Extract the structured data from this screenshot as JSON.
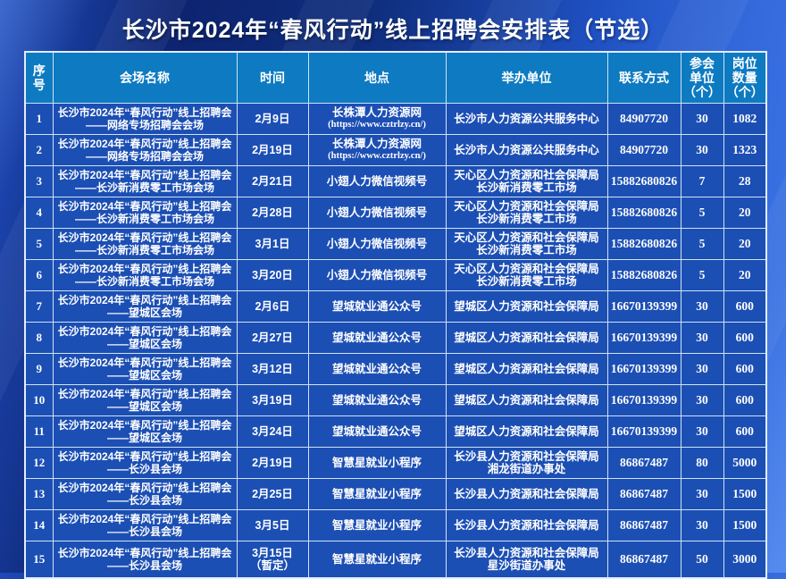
{
  "page": {
    "title": "长沙市2024年“春风行动”线上招聘会安排表（节选）"
  },
  "colors": {
    "background_top": "#0d2470",
    "background_bottom_right": "#3f78e8",
    "header_cell": "#0d7ac1",
    "body_cell": "#1c4fb4",
    "grid_line": "#cfe3f6",
    "text": "#ffffff"
  },
  "table": {
    "headers": [
      {
        "id": "no",
        "lines": [
          "序",
          "号"
        ]
      },
      {
        "id": "venue",
        "lines": [
          "会场名称"
        ]
      },
      {
        "id": "time",
        "lines": [
          "时间"
        ]
      },
      {
        "id": "place",
        "lines": [
          "地点"
        ]
      },
      {
        "id": "org",
        "lines": [
          "举办单位"
        ]
      },
      {
        "id": "contact",
        "lines": [
          "联系方式"
        ]
      },
      {
        "id": "units",
        "lines": [
          "参会",
          "单位",
          "（个）"
        ]
      },
      {
        "id": "positions",
        "lines": [
          "岗位",
          "数量",
          "（个）"
        ]
      }
    ],
    "rows": [
      {
        "no": "1",
        "venue": [
          "长沙市2024年“春风行动”线上招聘会",
          "——网络专场招聘会会场"
        ],
        "time": [
          "2月9日"
        ],
        "place": [
          "长株潭人力资源网",
          "(https://www.cztrlzy.cn/)"
        ],
        "org": [
          "长沙市人力资源公共服务中心"
        ],
        "contact": "84907720",
        "units": "30",
        "positions": "1082"
      },
      {
        "no": "2",
        "venue": [
          "长沙市2024年“春风行动”线上招聘会",
          "——网络专场招聘会会场"
        ],
        "time": [
          "2月19日"
        ],
        "place": [
          "长株潭人力资源网",
          "(https://www.cztrlzy.cn/)"
        ],
        "org": [
          "长沙市人力资源公共服务中心"
        ],
        "contact": "84907720",
        "units": "30",
        "positions": "1323"
      },
      {
        "no": "3",
        "venue": [
          "长沙市2024年“春风行动”线上招聘会",
          "——长沙新消费零工市场会场"
        ],
        "time": [
          "2月21日"
        ],
        "place": [
          "小翅人力微信视频号"
        ],
        "org": [
          "天心区人力资源和社会保障局",
          "长沙新消费零工市场"
        ],
        "contact": "15882680826",
        "units": "7",
        "positions": "28"
      },
      {
        "no": "4",
        "venue": [
          "长沙市2024年“春风行动”线上招聘会",
          "——长沙新消费零工市场会场"
        ],
        "time": [
          "2月28日"
        ],
        "place": [
          "小翅人力微信视频号"
        ],
        "org": [
          "天心区人力资源和社会保障局",
          "长沙新消费零工市场"
        ],
        "contact": "15882680826",
        "units": "5",
        "positions": "20"
      },
      {
        "no": "5",
        "venue": [
          "长沙市2024年“春风行动”线上招聘会",
          "——长沙新消费零工市场会场"
        ],
        "time": [
          "3月1日"
        ],
        "place": [
          "小翅人力微信视频号"
        ],
        "org": [
          "天心区人力资源和社会保障局",
          "长沙新消费零工市场"
        ],
        "contact": "15882680826",
        "units": "5",
        "positions": "20"
      },
      {
        "no": "6",
        "venue": [
          "长沙市2024年“春风行动”线上招聘会",
          "——长沙新消费零工市场会场"
        ],
        "time": [
          "3月20日"
        ],
        "place": [
          "小翅人力微信视频号"
        ],
        "org": [
          "天心区人力资源和社会保障局",
          "长沙新消费零工市场"
        ],
        "contact": "15882680826",
        "units": "5",
        "positions": "20"
      },
      {
        "no": "7",
        "venue": [
          "长沙市2024年“春风行动”线上招聘会",
          "——望城区会场"
        ],
        "time": [
          "2月6日"
        ],
        "place": [
          "望城就业通公众号"
        ],
        "org": [
          "望城区人力资源和社会保障局"
        ],
        "contact": "16670139399",
        "units": "30",
        "positions": "600"
      },
      {
        "no": "8",
        "venue": [
          "长沙市2024年“春风行动”线上招聘会",
          "——望城区会场"
        ],
        "time": [
          "2月27日"
        ],
        "place": [
          "望城就业通公众号"
        ],
        "org": [
          "望城区人力资源和社会保障局"
        ],
        "contact": "16670139399",
        "units": "30",
        "positions": "600"
      },
      {
        "no": "9",
        "venue": [
          "长沙市2024年“春风行动”线上招聘会",
          "——望城区会场"
        ],
        "time": [
          "3月12日"
        ],
        "place": [
          "望城就业通公众号"
        ],
        "org": [
          "望城区人力资源和社会保障局"
        ],
        "contact": "16670139399",
        "units": "30",
        "positions": "600"
      },
      {
        "no": "10",
        "venue": [
          "长沙市2024年“春风行动”线上招聘会",
          "——望城区会场"
        ],
        "time": [
          "3月19日"
        ],
        "place": [
          "望城就业通公众号"
        ],
        "org": [
          "望城区人力资源和社会保障局"
        ],
        "contact": "16670139399",
        "units": "30",
        "positions": "600"
      },
      {
        "no": "11",
        "venue": [
          "长沙市2024年“春风行动”线上招聘会",
          "——望城区会场"
        ],
        "time": [
          "3月24日"
        ],
        "place": [
          "望城就业通公众号"
        ],
        "org": [
          "望城区人力资源和社会保障局"
        ],
        "contact": "16670139399",
        "units": "30",
        "positions": "600"
      },
      {
        "no": "12",
        "venue": [
          "长沙市2024年“春风行动”线上招聘会",
          "——长沙县会场"
        ],
        "time": [
          "2月19日"
        ],
        "place": [
          "智慧星就业小程序"
        ],
        "org": [
          "长沙县人力资源和社会保障局",
          "湘龙街道办事处"
        ],
        "contact": "86867487",
        "units": "80",
        "positions": "5000"
      },
      {
        "no": "13",
        "venue": [
          "长沙市2024年“春风行动”线上招聘会",
          "——长沙县会场"
        ],
        "time": [
          "2月25日"
        ],
        "place": [
          "智慧星就业小程序"
        ],
        "org": [
          "长沙县人力资源和社会保障局"
        ],
        "contact": "86867487",
        "units": "30",
        "positions": "1500"
      },
      {
        "no": "14",
        "venue": [
          "长沙市2024年“春风行动”线上招聘会",
          "——长沙县会场"
        ],
        "time": [
          "3月5日"
        ],
        "place": [
          "智慧星就业小程序"
        ],
        "org": [
          "长沙县人力资源和社会保障局"
        ],
        "contact": "86867487",
        "units": "30",
        "positions": "1500"
      },
      {
        "no": "15",
        "venue": [
          "长沙市2024年“春风行动”线上招聘会",
          "——长沙县会场"
        ],
        "time": [
          "3月15日",
          "（暂定）"
        ],
        "place": [
          "智慧星就业小程序"
        ],
        "org": [
          "长沙县人力资源和社会保障局",
          "星沙街道办事处"
        ],
        "contact": "86867487",
        "units": "50",
        "positions": "3000"
      }
    ]
  }
}
